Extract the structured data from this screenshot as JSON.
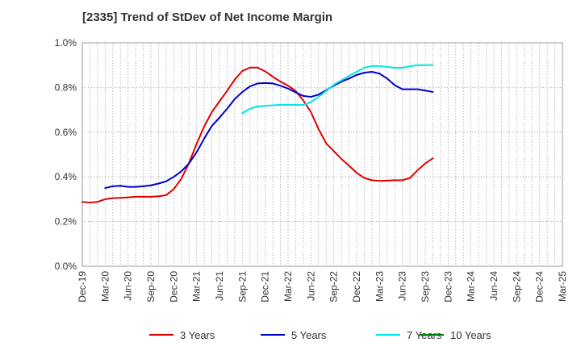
{
  "chart_data": {
    "type": "line",
    "title": "[2335]  Trend of StDev of Net Income Margin",
    "xlabel": "",
    "ylabel": "",
    "x_ticks": [
      "Dec-19",
      "Mar-20",
      "Jun-20",
      "Sep-20",
      "Dec-20",
      "Mar-21",
      "Jun-21",
      "Sep-21",
      "Dec-21",
      "Mar-22",
      "Jun-22",
      "Sep-22",
      "Dec-22",
      "Mar-23",
      "Jun-23",
      "Sep-23",
      "Dec-23",
      "Mar-24",
      "Jun-24",
      "Sep-24",
      "Dec-24",
      "Mar-25"
    ],
    "y_ticks": [
      "0.0%",
      "0.2%",
      "0.4%",
      "0.6%",
      "0.8%",
      "1.0%"
    ],
    "ylim": [
      0,
      1.0
    ],
    "y_unit": "%",
    "grid": "dotted",
    "legend_position": "bottom",
    "colors": {
      "3 Years": "#e00000",
      "5 Years": "#0000cc",
      "7 Years": "#00e5e5",
      "10 Years": "#008000"
    },
    "series": [
      {
        "name": "3 Years",
        "values": [
          0.288,
          0.285,
          0.288,
          0.3,
          0.305,
          0.306,
          0.308,
          0.311,
          0.311,
          0.311,
          0.313,
          0.318,
          0.345,
          0.392,
          0.462,
          0.548,
          0.626,
          0.69,
          0.738,
          0.785,
          0.835,
          0.874,
          0.889,
          0.889,
          0.872,
          0.848,
          0.826,
          0.808,
          0.784,
          0.742,
          0.69,
          0.614,
          0.55,
          0.515,
          0.48,
          0.45,
          0.418,
          0.395,
          0.385,
          0.382,
          0.383,
          0.385,
          0.385,
          0.395,
          0.43,
          0.46,
          0.483
        ]
      },
      {
        "name": "5 Years",
        "values": [
          null,
          null,
          null,
          0.35,
          0.358,
          0.36,
          0.355,
          0.355,
          0.358,
          0.362,
          0.37,
          0.38,
          0.4,
          0.425,
          0.46,
          0.51,
          0.572,
          0.628,
          0.665,
          0.705,
          0.748,
          0.78,
          0.805,
          0.818,
          0.82,
          0.818,
          0.808,
          0.795,
          0.778,
          0.762,
          0.758,
          0.768,
          0.788,
          0.808,
          0.826,
          0.84,
          0.856,
          0.866,
          0.87,
          0.862,
          0.84,
          0.81,
          0.792,
          0.792,
          0.792,
          0.786,
          0.78
        ]
      },
      {
        "name": "7 Years",
        "values": [
          null,
          null,
          null,
          null,
          null,
          null,
          null,
          null,
          null,
          null,
          null,
          null,
          null,
          null,
          null,
          null,
          null,
          null,
          null,
          null,
          null,
          0.685,
          0.705,
          0.715,
          0.718,
          0.72,
          0.722,
          0.723,
          0.722,
          0.722,
          0.735,
          0.758,
          0.785,
          0.812,
          0.832,
          0.852,
          0.87,
          0.888,
          0.896,
          0.896,
          0.892,
          0.888,
          0.888,
          0.895,
          0.9,
          0.9,
          0.9
        ]
      },
      {
        "name": "10 Years",
        "values": []
      }
    ]
  },
  "legend": [
    {
      "label": "3 Years"
    },
    {
      "label": "5 Years"
    },
    {
      "label": "7 Years"
    },
    {
      "label": "10 Years"
    }
  ]
}
